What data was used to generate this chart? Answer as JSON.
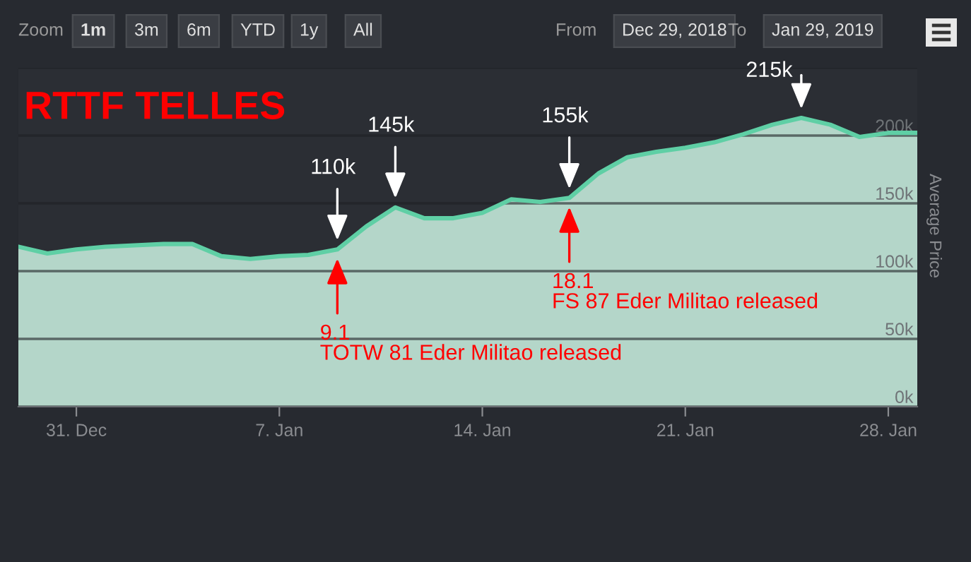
{
  "chart_data": {
    "type": "area",
    "title": "RTTF TELLES",
    "ylabel": "Average Price",
    "x": [
      "2018-12-29",
      "2018-12-30",
      "2018-12-31",
      "2019-01-01",
      "2019-01-02",
      "2019-01-03",
      "2019-01-04",
      "2019-01-05",
      "2019-01-06",
      "2019-01-07",
      "2019-01-08",
      "2019-01-09",
      "2019-01-10",
      "2019-01-11",
      "2019-01-12",
      "2019-01-13",
      "2019-01-14",
      "2019-01-15",
      "2019-01-16",
      "2019-01-17",
      "2019-01-18",
      "2019-01-19",
      "2019-01-20",
      "2019-01-21",
      "2019-01-22",
      "2019-01-23",
      "2019-01-24",
      "2019-01-25",
      "2019-01-26",
      "2019-01-27",
      "2019-01-28",
      "2019-01-29"
    ],
    "series": [
      {
        "color": "#5fcfa5",
        "values": [
          118000,
          113000,
          116000,
          118000,
          119000,
          120000,
          120000,
          111000,
          109000,
          111000,
          112000,
          116000,
          133000,
          147000,
          139000,
          139000,
          143000,
          153000,
          151000,
          154000,
          172000,
          184000,
          188000,
          191000,
          195000,
          201000,
          208000,
          213000,
          208000,
          199000,
          202000,
          202000
        ]
      }
    ],
    "xlim": [
      "2018-12-29",
      "2019-01-29"
    ],
    "xticks": [
      {
        "value": "2018-12-31",
        "label": "31. Dec"
      },
      {
        "value": "2019-01-07",
        "label": "7. Jan"
      },
      {
        "value": "2019-01-14",
        "label": "14. Jan"
      },
      {
        "value": "2019-01-21",
        "label": "21. Jan"
      },
      {
        "value": "2019-01-28",
        "label": "28. Jan"
      }
    ],
    "ylim": [
      0,
      250000
    ],
    "yticks": [
      {
        "value": 0,
        "label": "0k"
      },
      {
        "value": 50000,
        "label": "50k"
      },
      {
        "value": 100000,
        "label": "100k"
      },
      {
        "value": 150000,
        "label": "150k"
      },
      {
        "value": 200000,
        "label": "200k"
      },
      {
        "value": 250000,
        "label": null
      }
    ],
    "grid": "y",
    "annotations": [
      {
        "text": "110k",
        "x": "2019-01-09",
        "y": 116000
      },
      {
        "text": "145k",
        "x": "2019-01-11",
        "y": 147000
      },
      {
        "text": "155k",
        "x": "2019-01-17",
        "y": 154000
      },
      {
        "text": "215k",
        "x": "2019-01-25",
        "y": 213000
      },
      {
        "text": "9.1\nTOTW 81 Eder Militao released",
        "x": "2019-01-09",
        "y": 116000
      },
      {
        "text": "18.1\nFS 87 Eder Militao released",
        "x": "2019-01-17",
        "y": 154000
      },
      "Zoom",
      "1m",
      "3m",
      "6m",
      "YTD",
      "1y",
      "All",
      "From",
      "Dec 29, 2018",
      "To",
      "Jan 29, 2019"
    ]
  }
}
